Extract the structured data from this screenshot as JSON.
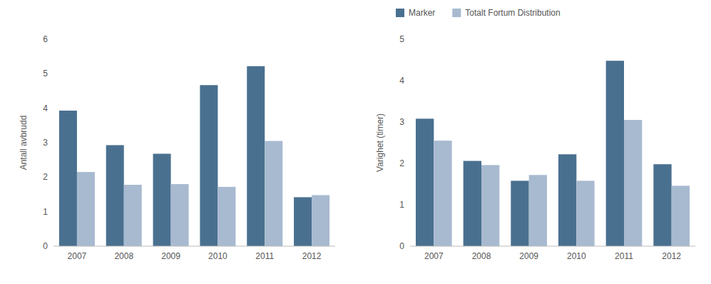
{
  "chart_data": [
    {
      "type": "bar",
      "ylabel": "Antall avbrudd",
      "categories": [
        "2007",
        "2008",
        "2009",
        "2010",
        "2011",
        "2012"
      ],
      "series": [
        {
          "color": "#4A7090",
          "values": [
            3.93,
            2.93,
            2.68,
            4.67,
            5.22,
            1.42
          ]
        },
        {
          "color": "#A8BAD0",
          "values": [
            2.15,
            1.78,
            1.8,
            1.72,
            3.05,
            1.48
          ]
        }
      ],
      "ylim": [
        0,
        6
      ],
      "yticks": [
        0,
        1,
        2,
        3,
        4,
        5,
        6
      ],
      "grid": false
    },
    {
      "type": "bar",
      "ylabel": "Varighet (timer)",
      "categories": [
        "2007",
        "2008",
        "2009",
        "2010",
        "2011",
        "2012"
      ],
      "series": [
        {
          "name": "Marker",
          "color": "#4A7090",
          "values": [
            3.08,
            2.06,
            1.58,
            2.22,
            4.48,
            1.98
          ]
        },
        {
          "name": "Totalt Fortum Distribution",
          "color": "#A8BAD0",
          "values": [
            2.55,
            1.96,
            1.72,
            1.58,
            3.05,
            1.46
          ]
        }
      ],
      "ylim": [
        0,
        5
      ],
      "yticks": [
        0,
        1,
        2,
        3,
        4,
        5
      ],
      "grid": false,
      "legend": "top"
    }
  ]
}
